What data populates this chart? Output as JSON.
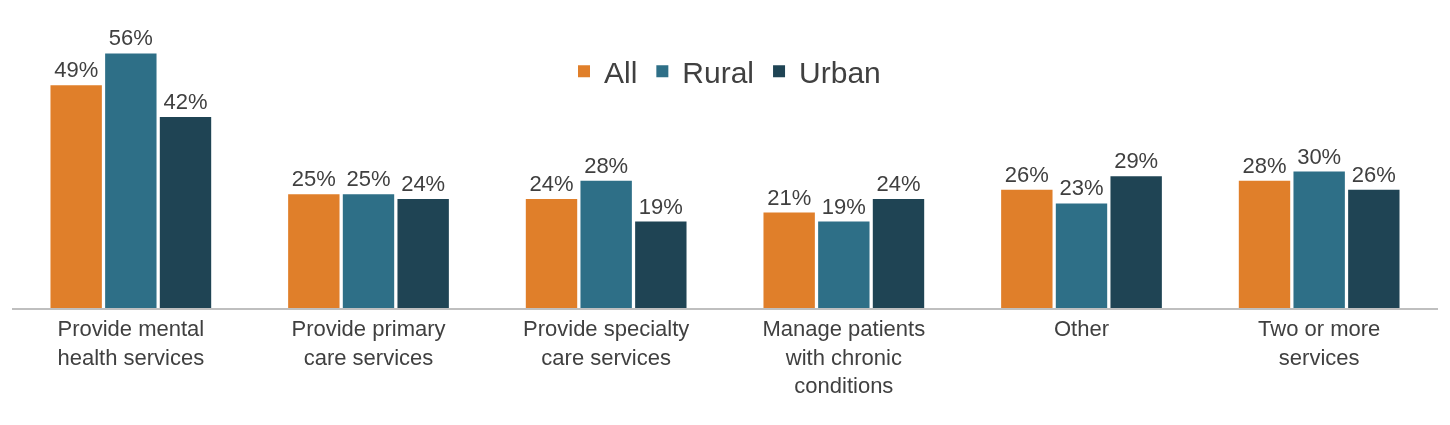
{
  "chart_data": {
    "type": "bar",
    "categories": [
      "Provide mental health services",
      "Provide primary care services",
      "Provide specialty care services",
      "Manage patients with chronic conditions",
      "Other",
      "Two or more services"
    ],
    "series": [
      {
        "name": "All",
        "color": "#e07f2a",
        "values": [
          49,
          25,
          24,
          21,
          26,
          28
        ],
        "value_labels": [
          "49%",
          "25%",
          "24%",
          "21%",
          "26%",
          "28%"
        ]
      },
      {
        "name": "Rural",
        "color": "#2e6f87",
        "values": [
          56,
          25,
          28,
          19,
          23,
          30
        ],
        "value_labels": [
          "56%",
          "25%",
          "28%",
          "19%",
          "23%",
          "30%"
        ]
      },
      {
        "name": "Urban",
        "color": "#1f4454",
        "values": [
          42,
          24,
          19,
          24,
          29,
          26
        ],
        "value_labels": [
          "42%",
          "24%",
          "19%",
          "24%",
          "29%",
          "26%"
        ]
      }
    ],
    "tick_labels": "x",
    "legend": "top"
  }
}
